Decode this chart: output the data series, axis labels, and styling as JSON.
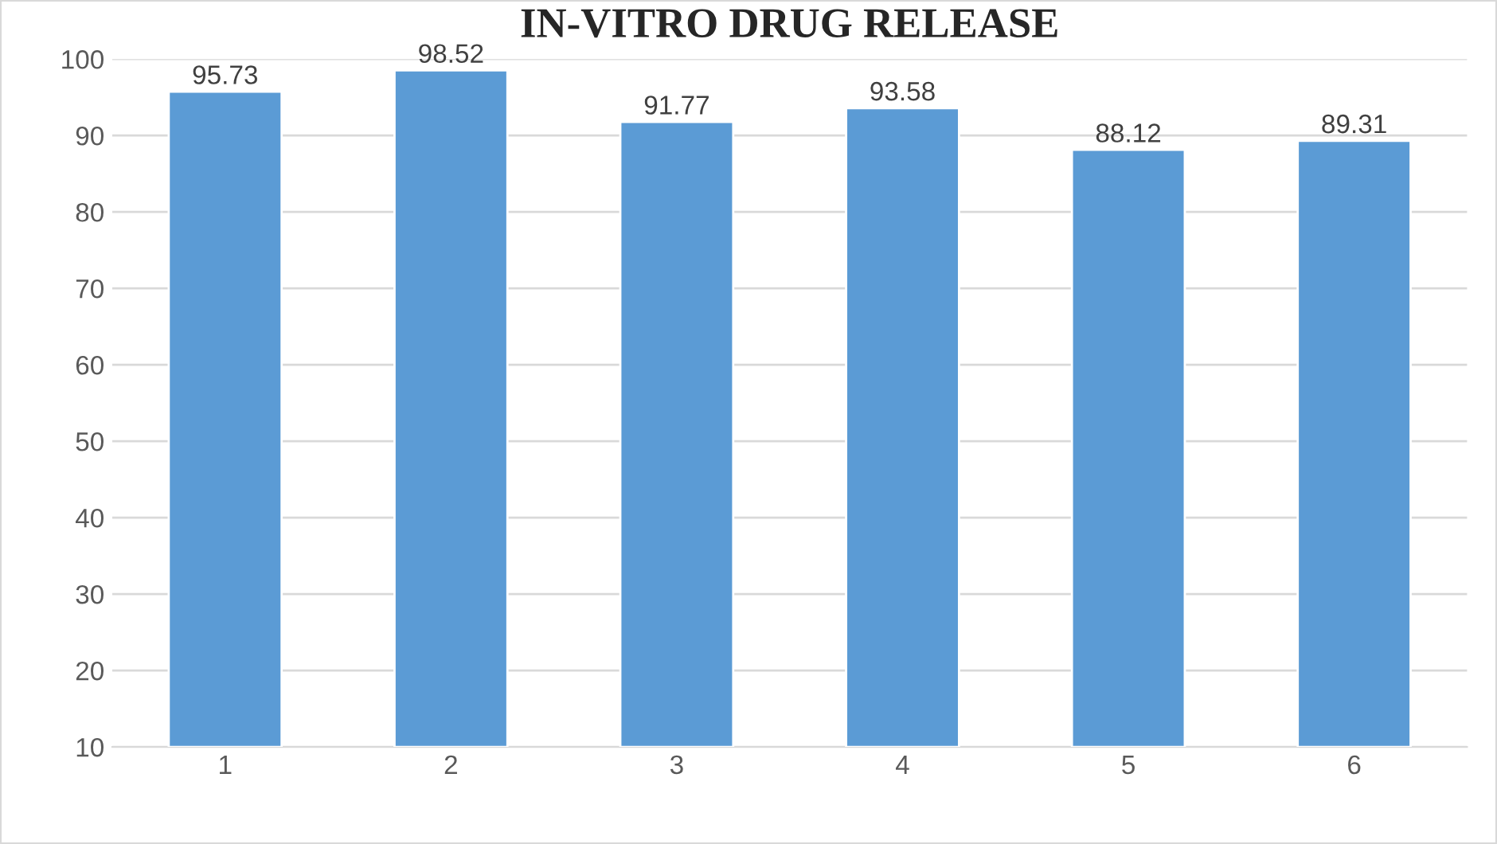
{
  "chart_data": {
    "type": "bar",
    "title": "IN-VITRO DRUG RELEASE",
    "categories": [
      "1",
      "2",
      "3",
      "4",
      "5",
      "6"
    ],
    "values": [
      95.73,
      98.52,
      91.77,
      93.58,
      88.12,
      89.31
    ],
    "color": "#5b9bd5",
    "ylim": [
      10,
      100
    ],
    "yticks": [
      10,
      20,
      30,
      40,
      50,
      60,
      70,
      80,
      90,
      100
    ],
    "grid": "y",
    "data_labels": true
  }
}
